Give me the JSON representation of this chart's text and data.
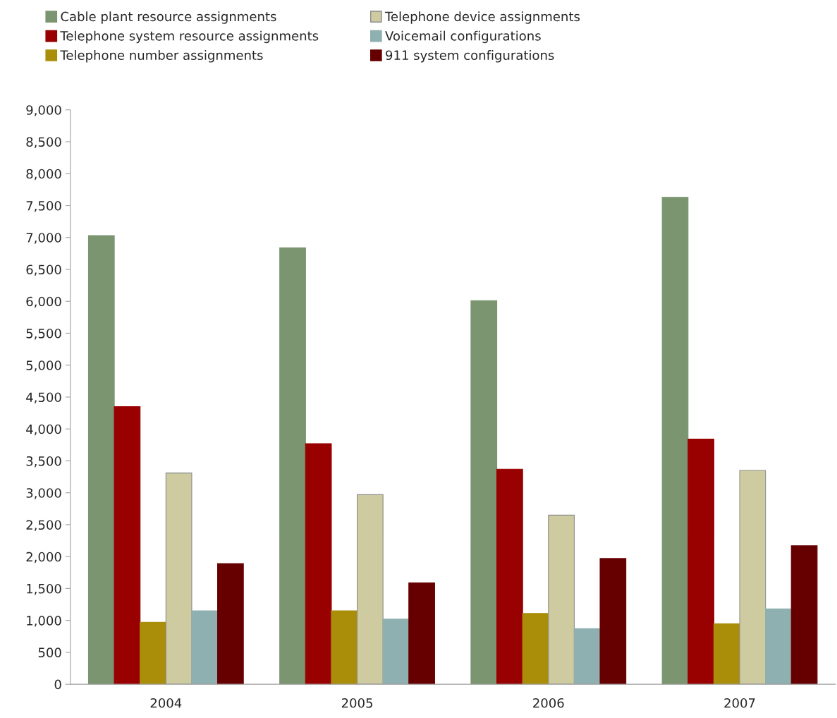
{
  "chart_data": {
    "type": "bar",
    "categories": [
      "2004",
      "2005",
      "2006",
      "2007"
    ],
    "series": [
      {
        "name": "Cable plant resource assignments",
        "color": "#7a9570",
        "values": [
          7030,
          6840,
          6010,
          7630
        ]
      },
      {
        "name": "Telephone system resource assignments",
        "color": "#990000",
        "values": [
          4350,
          3770,
          3370,
          3840
        ]
      },
      {
        "name": "Telephone number assignments",
        "color": "#aa8e0a",
        "values": [
          970,
          1150,
          1110,
          950
        ]
      },
      {
        "name": "Telephone device assignments",
        "color": "#cecba0",
        "values": [
          3310,
          2970,
          2650,
          3350
        ]
      },
      {
        "name": "Voicemail configurations",
        "color": "#8fb0b0",
        "values": [
          1150,
          1020,
          870,
          1180
        ]
      },
      {
        "name": "911 system configurations",
        "color": "#660000",
        "values": [
          1890,
          1590,
          1970,
          2170
        ]
      }
    ],
    "ylim": [
      0,
      9000
    ],
    "yticks": [
      {
        "value": 0,
        "label": "0"
      },
      {
        "value": 500,
        "label": "500"
      },
      {
        "value": 1000,
        "label": "1,000"
      },
      {
        "value": 1500,
        "label": "1,500"
      },
      {
        "value": 2000,
        "label": "2,000"
      },
      {
        "value": 2500,
        "label": "2,500"
      },
      {
        "value": 3000,
        "label": "3,000"
      },
      {
        "value": 3500,
        "label": "3,500"
      },
      {
        "value": 4000,
        "label": "4,000"
      },
      {
        "value": 4500,
        "label": "4,500"
      },
      {
        "value": 5000,
        "label": "5,000"
      },
      {
        "value": 5500,
        "label": "5,500"
      },
      {
        "value": 6000,
        "label": "6,000"
      },
      {
        "value": 6500,
        "label": "6,500"
      },
      {
        "value": 7000,
        "label": "7,000"
      },
      {
        "value": 7500,
        "label": "7,500"
      },
      {
        "value": 8000,
        "label": "8,000"
      },
      {
        "value": 8500,
        "label": "8,500"
      },
      {
        "value": 9000,
        "label": "9,000"
      }
    ],
    "grid": false,
    "legend": "top",
    "marker": "square"
  }
}
